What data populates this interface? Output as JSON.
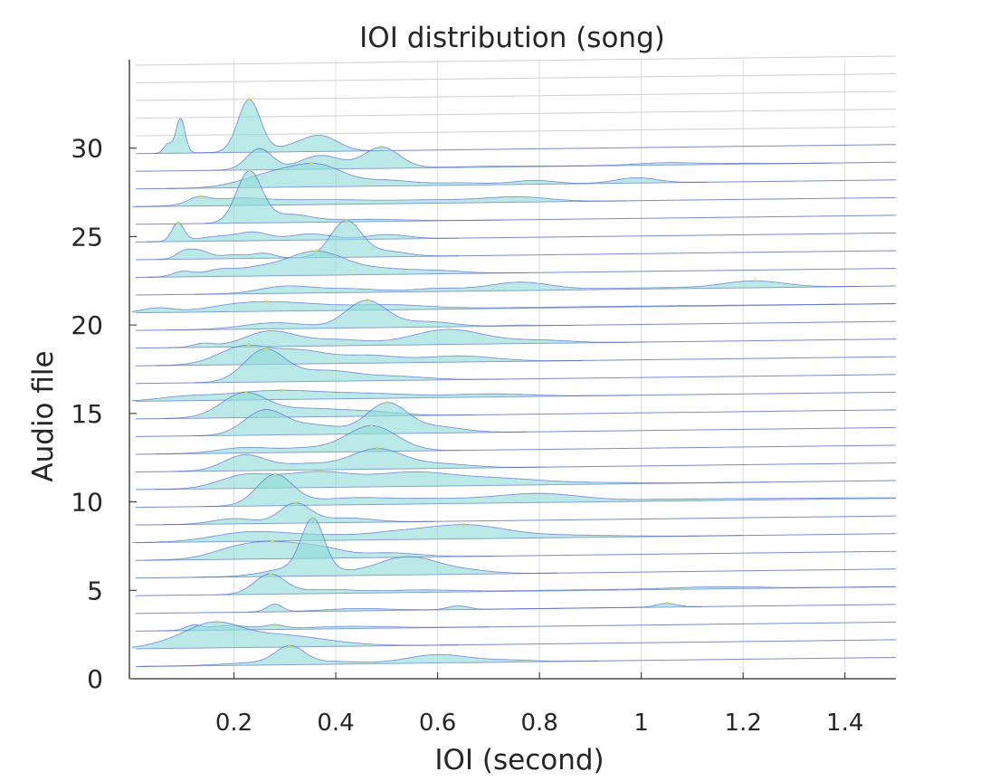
{
  "chart_data": {
    "type": "ridgeline",
    "title": "IOI distribution (song)",
    "xlabel": "IOI (second)",
    "ylabel": "Audio file",
    "xlim": [
      0,
      1.5
    ],
    "ylim": [
      0,
      35
    ],
    "x_ticks": [
      0.2,
      0.4,
      0.6,
      0.8,
      1,
      1.2,
      1.4
    ],
    "x_tick_labels": [
      "0.2",
      "0.4",
      "0.6",
      "0.8",
      "1",
      "1.2",
      "1.4"
    ],
    "y_ticks": [
      0,
      5,
      10,
      15,
      20,
      25,
      30
    ],
    "y_tick_labels": [
      "0",
      "5",
      "10",
      "15",
      "20",
      "25",
      "30"
    ],
    "grid": true,
    "fill_color": "#8fdcd9",
    "line_color": "#4f63c8",
    "peak_color": "#c8d96a",
    "series": [
      {
        "values": [
          [
            0.26,
            0.18,
            0.07
          ],
          [
            0.31,
            1.1,
            0.028
          ],
          [
            0.4,
            0.15,
            0.05
          ],
          [
            0.6,
            0.55,
            0.06
          ],
          [
            0.74,
            0.12,
            0.05
          ]
        ]
      },
      {
        "values": [
          [
            0.08,
            0.35,
            0.05
          ],
          [
            0.16,
            1.3,
            0.05
          ],
          [
            0.26,
            0.7,
            0.08
          ],
          [
            0.36,
            0.25,
            0.08
          ]
        ]
      },
      {
        "values": [
          [
            0.12,
            0.3,
            0.015
          ],
          [
            0.19,
            0.3,
            0.04
          ],
          [
            0.28,
            0.25,
            0.02
          ],
          [
            0.42,
            0.15,
            0.08
          ]
        ]
      },
      {
        "values": [
          [
            0.28,
            0.5,
            0.015
          ],
          [
            0.44,
            0.15,
            0.06
          ],
          [
            0.64,
            0.25,
            0.02
          ],
          [
            1.05,
            0.25,
            0.02
          ]
        ]
      },
      {
        "values": [
          [
            0.27,
            1.3,
            0.03
          ],
          [
            0.38,
            0.25,
            0.06
          ],
          [
            0.56,
            0.15,
            0.07
          ],
          [
            0.9,
            0.04,
            0.2
          ],
          [
            1.15,
            0.12,
            0.08
          ]
        ]
      },
      {
        "values": [
          [
            0.355,
            3.3,
            0.022
          ],
          [
            0.33,
            0.6,
            0.06
          ],
          [
            0.54,
            1.2,
            0.06
          ],
          [
            0.66,
            0.2,
            0.05
          ]
        ]
      },
      {
        "values": [
          [
            0.2,
            0.55,
            0.05
          ],
          [
            0.29,
            1.0,
            0.06
          ],
          [
            0.38,
            0.4,
            0.04
          ],
          [
            0.5,
            0.3,
            0.06
          ]
        ]
      },
      {
        "values": [
          [
            0.23,
            0.6,
            0.07
          ],
          [
            0.37,
            0.3,
            0.07
          ],
          [
            0.51,
            0.35,
            0.06
          ],
          [
            0.65,
            0.9,
            0.08
          ],
          [
            0.85,
            0.15,
            0.1
          ]
        ]
      },
      {
        "values": [
          [
            0.2,
            0.35,
            0.04
          ],
          [
            0.32,
            1.3,
            0.03
          ],
          [
            0.42,
            0.3,
            0.05
          ]
        ]
      },
      {
        "values": [
          [
            0.28,
            2.0,
            0.035
          ],
          [
            0.42,
            0.4,
            0.08
          ],
          [
            0.6,
            0.3,
            0.1
          ],
          [
            0.8,
            0.55,
            0.08
          ],
          [
            1.1,
            0.12,
            0.15
          ],
          [
            1.4,
            0.05,
            0.1
          ]
        ]
      },
      {
        "values": [
          [
            0.22,
            0.8,
            0.05
          ],
          [
            0.36,
            1.0,
            0.07
          ],
          [
            0.55,
            0.9,
            0.08
          ],
          [
            0.72,
            0.4,
            0.08
          ],
          [
            0.9,
            0.1,
            0.1
          ]
        ]
      },
      {
        "values": [
          [
            0.22,
            1.0,
            0.04
          ],
          [
            0.34,
            0.4,
            0.06
          ],
          [
            0.48,
            1.3,
            0.05
          ],
          [
            0.6,
            0.3,
            0.06
          ]
        ]
      },
      {
        "values": [
          [
            0.22,
            0.35,
            0.05
          ],
          [
            0.34,
            0.25,
            0.05
          ],
          [
            0.47,
            1.7,
            0.05
          ]
        ]
      },
      {
        "values": [
          [
            0.26,
            1.6,
            0.04
          ],
          [
            0.36,
            0.6,
            0.05
          ],
          [
            0.5,
            2.0,
            0.04
          ],
          [
            0.6,
            0.4,
            0.05
          ]
        ]
      },
      {
        "values": [
          [
            0.22,
            1.6,
            0.045
          ],
          [
            0.34,
            0.5,
            0.06
          ],
          [
            0.46,
            0.3,
            0.06
          ]
        ]
      },
      {
        "values": [
          [
            0.1,
            0.2,
            0.05
          ],
          [
            0.28,
            0.6,
            0.1
          ],
          [
            0.48,
            0.25,
            0.08
          ],
          [
            0.7,
            0.2,
            0.08
          ]
        ]
      },
      {
        "values": [
          [
            0.26,
            2.1,
            0.04
          ],
          [
            0.38,
            0.7,
            0.06
          ],
          [
            0.52,
            0.25,
            0.06
          ]
        ]
      },
      {
        "values": [
          [
            0.22,
            1.2,
            0.05
          ],
          [
            0.33,
            0.8,
            0.05
          ],
          [
            0.46,
            0.5,
            0.06
          ],
          [
            0.64,
            0.4,
            0.07
          ]
        ]
      },
      {
        "values": [
          [
            0.14,
            0.25,
            0.02
          ],
          [
            0.27,
            1.0,
            0.05
          ],
          [
            0.4,
            0.4,
            0.06
          ],
          [
            0.62,
            1.0,
            0.07
          ],
          [
            0.8,
            0.2,
            0.06
          ]
        ]
      },
      {
        "values": [
          [
            0.28,
            0.4,
            0.06
          ],
          [
            0.46,
            1.8,
            0.04
          ],
          [
            0.58,
            0.35,
            0.05
          ],
          [
            0.76,
            0.05,
            0.03
          ]
        ]
      },
      {
        "values": [
          [
            0.05,
            0.3,
            0.03
          ],
          [
            0.2,
            0.3,
            0.06
          ],
          [
            0.3,
            0.5,
            0.08
          ],
          [
            0.5,
            0.3,
            0.08
          ],
          [
            0.9,
            0.05,
            0.3
          ]
        ]
      },
      {
        "values": [
          [
            0.3,
            0.45,
            0.05
          ],
          [
            0.42,
            0.25,
            0.06
          ],
          [
            0.6,
            0.2,
            0.05
          ],
          [
            0.76,
            0.55,
            0.06
          ],
          [
            1.0,
            0.08,
            0.1
          ],
          [
            1.22,
            0.45,
            0.06
          ]
        ]
      },
      {
        "values": [
          [
            0.1,
            0.35,
            0.02
          ],
          [
            0.17,
            0.4,
            0.03
          ],
          [
            0.24,
            0.4,
            0.04
          ],
          [
            0.36,
            1.6,
            0.06
          ],
          [
            0.5,
            0.3,
            0.05
          ],
          [
            0.6,
            0.2,
            0.05
          ]
        ]
      },
      {
        "values": [
          [
            0.1,
            0.4,
            0.015
          ],
          [
            0.13,
            0.55,
            0.02
          ],
          [
            0.2,
            0.25,
            0.03
          ],
          [
            0.26,
            0.3,
            0.02
          ],
          [
            0.42,
            2.4,
            0.03
          ],
          [
            0.5,
            0.35,
            0.04
          ]
        ]
      },
      {
        "values": [
          [
            0.09,
            1.2,
            0.012
          ],
          [
            0.17,
            0.3,
            0.04
          ],
          [
            0.24,
            0.5,
            0.03
          ],
          [
            0.35,
            0.4,
            0.04
          ],
          [
            0.5,
            0.3,
            0.04
          ]
        ]
      },
      {
        "values": [
          [
            0.23,
            3.4,
            0.025
          ],
          [
            0.31,
            0.5,
            0.04
          ],
          [
            0.45,
            0.15,
            0.08
          ]
        ]
      },
      {
        "values": [
          [
            0.13,
            0.4,
            0.02
          ],
          [
            0.2,
            0.4,
            0.06
          ],
          [
            0.36,
            0.3,
            0.1
          ],
          [
            0.6,
            0.2,
            0.1
          ],
          [
            0.76,
            0.3,
            0.06
          ]
        ]
      },
      {
        "values": [
          [
            0.28,
            0.9,
            0.06
          ],
          [
            0.37,
            1.2,
            0.05
          ],
          [
            0.5,
            0.35,
            0.05
          ],
          [
            0.64,
            0.15,
            0.06
          ],
          [
            0.79,
            0.25,
            0.04
          ],
          [
            0.99,
            0.35,
            0.04
          ]
        ]
      },
      {
        "values": [
          [
            0.25,
            1.4,
            0.025
          ],
          [
            0.37,
            0.9,
            0.04
          ],
          [
            0.49,
            1.4,
            0.035
          ],
          [
            0.7,
            0.05,
            0.1
          ],
          [
            1.05,
            0.15,
            0.06
          ],
          [
            1.2,
            0.05,
            0.05
          ]
        ]
      },
      {
        "values": [
          [
            0.07,
            0.6,
            0.008
          ],
          [
            0.095,
            2.3,
            0.009
          ],
          [
            0.23,
            3.5,
            0.022
          ],
          [
            0.31,
            0.3,
            0.03
          ],
          [
            0.36,
            0.75,
            0.03
          ],
          [
            0.39,
            0.4,
            0.03
          ]
        ]
      },
      {
        "values": []
      },
      {
        "values": []
      },
      {
        "values": []
      },
      {
        "values": []
      },
      {
        "values": []
      }
    ]
  }
}
